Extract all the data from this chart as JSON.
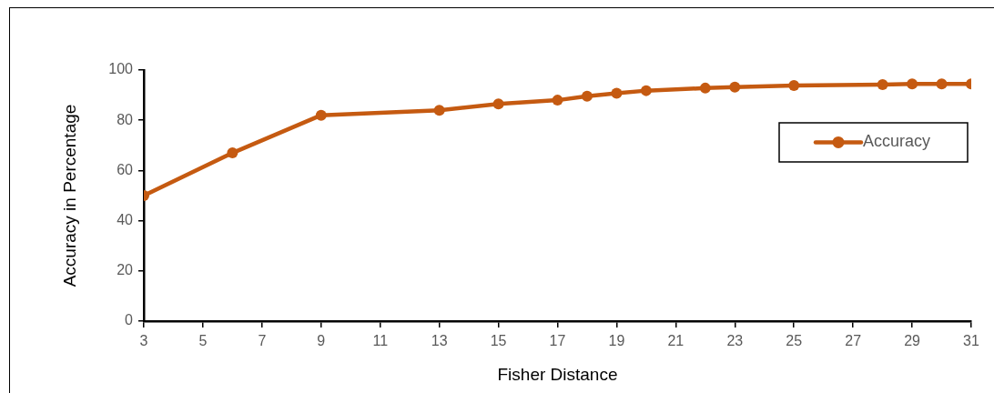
{
  "chart_data": {
    "type": "line",
    "xlabel": "Fisher Distance",
    "ylabel": "Accuracy in Percentage",
    "x": [
      3,
      6,
      9,
      13,
      15,
      17,
      18,
      19,
      20,
      22,
      23,
      25,
      28,
      29,
      30,
      31
    ],
    "series": [
      {
        "name": "Accuracy",
        "color": "#c55a11",
        "values": [
          50,
          67,
          82,
          84,
          86.5,
          88,
          89.6,
          90.8,
          91.8,
          92.8,
          93.2,
          93.8,
          94.2,
          94.5,
          94.5,
          94.5
        ]
      }
    ],
    "xlim": [
      3,
      31
    ],
    "xticks": [
      3,
      5,
      7,
      9,
      11,
      13,
      15,
      17,
      19,
      21,
      23,
      25,
      27,
      29,
      31
    ],
    "ylim": [
      0,
      100
    ],
    "yticks": [
      0,
      20,
      40,
      60,
      80,
      100
    ],
    "grid": false,
    "legend": "right",
    "marker": "circle",
    "line_style": "solid"
  }
}
